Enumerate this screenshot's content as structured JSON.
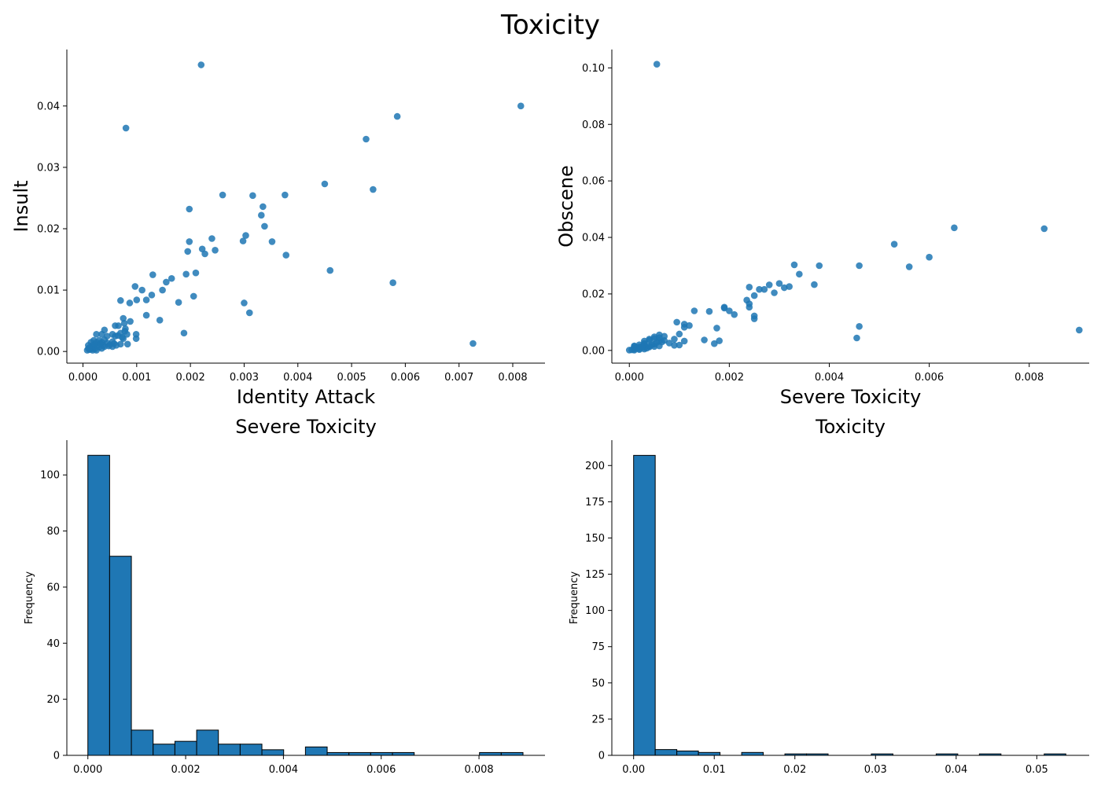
{
  "figure": {
    "title": "Toxicity"
  },
  "colors": {
    "marker": "#1f77b4",
    "edge": "#000000",
    "axis": "#000000"
  },
  "chart_data": [
    {
      "type": "scatter",
      "title": "",
      "xlabel": "Identity Attack",
      "ylabel": "Insult",
      "xlim": [
        -0.0003,
        0.0086
      ],
      "ylim": [
        -0.0019,
        0.0492
      ],
      "xticks": [
        0.0,
        0.001,
        0.002,
        0.003,
        0.004,
        0.005,
        0.006,
        0.007,
        0.008
      ],
      "yticks": [
        0.0,
        0.01,
        0.02,
        0.03,
        0.04
      ],
      "xtick_labels": [
        "0.000",
        "0.001",
        "0.002",
        "0.003",
        "0.004",
        "0.005",
        "0.006",
        "0.007",
        "0.008"
      ],
      "ytick_labels": [
        "0.00",
        "0.01",
        "0.02",
        "0.03",
        "0.04"
      ],
      "points": [
        [
          0.0022,
          0.0467
        ],
        [
          0.0008,
          0.0364
        ],
        [
          0.00815,
          0.04
        ],
        [
          0.00585,
          0.0383
        ],
        [
          0.00527,
          0.0346
        ],
        [
          0.0045,
          0.0273
        ],
        [
          0.0054,
          0.0264
        ],
        [
          0.0026,
          0.0255
        ],
        [
          0.00316,
          0.0254
        ],
        [
          0.00376,
          0.0255
        ],
        [
          0.00335,
          0.0236
        ],
        [
          0.00198,
          0.0232
        ],
        [
          0.00332,
          0.0222
        ],
        [
          0.00338,
          0.0204
        ],
        [
          0.00303,
          0.0189
        ],
        [
          0.0024,
          0.0184
        ],
        [
          0.00198,
          0.0179
        ],
        [
          0.00298,
          0.018
        ],
        [
          0.00352,
          0.0179
        ],
        [
          0.00222,
          0.0167
        ],
        [
          0.00246,
          0.0165
        ],
        [
          0.00195,
          0.0163
        ],
        [
          0.00227,
          0.0159
        ],
        [
          0.00378,
          0.0157
        ],
        [
          0.0046,
          0.0132
        ],
        [
          0.0021,
          0.0128
        ],
        [
          0.00192,
          0.0126
        ],
        [
          0.0013,
          0.0125
        ],
        [
          0.00165,
          0.0119
        ],
        [
          0.00155,
          0.0113
        ],
        [
          0.00577,
          0.0112
        ],
        [
          0.00097,
          0.0106
        ],
        [
          0.0011,
          0.01
        ],
        [
          0.00148,
          0.01
        ],
        [
          0.00128,
          0.0092
        ],
        [
          0.00206,
          0.009
        ],
        [
          0.00118,
          0.0084
        ],
        [
          0.001,
          0.0084
        ],
        [
          0.0007,
          0.0083
        ],
        [
          0.00087,
          0.0079
        ],
        [
          0.00178,
          0.008
        ],
        [
          0.003,
          0.0079
        ],
        [
          0.0031,
          0.0063
        ],
        [
          0.00118,
          0.0059
        ],
        [
          0.00143,
          0.0051
        ],
        [
          0.00075,
          0.0054
        ],
        [
          0.00088,
          0.0049
        ],
        [
          0.00077,
          0.0046
        ],
        [
          0.0006,
          0.0042
        ],
        [
          0.00066,
          0.0042
        ],
        [
          0.00079,
          0.0037
        ],
        [
          0.0004,
          0.0035
        ],
        [
          0.00078,
          0.0033
        ],
        [
          0.0007,
          0.003
        ],
        [
          0.00188,
          0.003
        ],
        [
          0.00025,
          0.0028
        ],
        [
          0.00035,
          0.0028
        ],
        [
          0.00055,
          0.0028
        ],
        [
          0.00065,
          0.0026
        ],
        [
          0.00082,
          0.0028
        ],
        [
          0.00099,
          0.0028
        ],
        [
          0.00045,
          0.0025
        ],
        [
          0.0006,
          0.0025
        ],
        [
          0.00073,
          0.0023
        ],
        [
          0.00099,
          0.0021
        ],
        [
          0.00075,
          0.0021
        ],
        [
          0.0002,
          0.0018
        ],
        [
          0.0003,
          0.0018
        ],
        [
          0.0004,
          0.0019
        ],
        [
          0.00055,
          0.0016
        ],
        [
          0.00015,
          0.0015
        ],
        [
          0.00025,
          0.0015
        ],
        [
          0.00035,
          0.0015
        ],
        [
          0.00045,
          0.0014
        ],
        [
          0.00058,
          0.0013
        ],
        [
          0.00083,
          0.0012
        ],
        [
          0.0007,
          0.0012
        ],
        [
          0.00726,
          0.0013
        ],
        [
          0.0001,
          0.001
        ],
        [
          0.00018,
          0.001
        ],
        [
          0.00028,
          0.001
        ],
        [
          0.00038,
          0.001
        ],
        [
          0.00048,
          0.0009
        ],
        [
          0.00055,
          0.0008
        ],
        [
          0.0002,
          0.0007
        ],
        [
          0.0003,
          0.0007
        ],
        [
          0.0001,
          0.0005
        ],
        [
          0.00015,
          0.0004
        ],
        [
          0.00022,
          0.0004
        ],
        [
          0.00012,
          0.0003
        ],
        [
          8e-05,
          0.0002
        ],
        [
          0.00018,
          0.0002
        ],
        [
          0.00025,
          0.0002
        ],
        [
          0.00035,
          0.0005
        ],
        [
          0.00012,
          0.0006
        ],
        [
          0.0005,
          0.0011
        ],
        [
          0.0004,
          0.0008
        ],
        [
          0.00062,
          0.001
        ],
        [
          0.00022,
          0.0012
        ],
        [
          0.00032,
          0.0013
        ]
      ]
    },
    {
      "type": "scatter",
      "title": "",
      "xlabel": "Severe Toxicity",
      "ylabel": "Obscene",
      "xlim": [
        -0.00035,
        0.0092
      ],
      "ylim": [
        -0.0045,
        0.1065
      ],
      "xticks": [
        0.0,
        0.002,
        0.004,
        0.006,
        0.008
      ],
      "yticks": [
        0.0,
        0.02,
        0.04,
        0.06,
        0.08,
        0.1
      ],
      "xtick_labels": [
        "0.000",
        "0.002",
        "0.004",
        "0.006",
        "0.008"
      ],
      "ytick_labels": [
        "0.00",
        "0.02",
        "0.04",
        "0.06",
        "0.08",
        "0.10"
      ],
      "points": [
        [
          0.00055,
          0.1013
        ],
        [
          0.0065,
          0.0434
        ],
        [
          0.0083,
          0.0431
        ],
        [
          0.0053,
          0.0376
        ],
        [
          0.006,
          0.033
        ],
        [
          0.0033,
          0.0303
        ],
        [
          0.0038,
          0.03
        ],
        [
          0.0046,
          0.03
        ],
        [
          0.0056,
          0.0296
        ],
        [
          0.0034,
          0.027
        ],
        [
          0.003,
          0.0237
        ],
        [
          0.0028,
          0.0232
        ],
        [
          0.0037,
          0.0233
        ],
        [
          0.0032,
          0.0226
        ],
        [
          0.0031,
          0.0222
        ],
        [
          0.0024,
          0.0224
        ],
        [
          0.0026,
          0.0216
        ],
        [
          0.0027,
          0.0216
        ],
        [
          0.0029,
          0.0204
        ],
        [
          0.0025,
          0.0194
        ],
        [
          0.0024,
          0.0165
        ],
        [
          0.00235,
          0.0178
        ],
        [
          0.0019,
          0.0153
        ],
        [
          0.0019,
          0.015
        ],
        [
          0.0024,
          0.0153
        ],
        [
          0.002,
          0.014
        ],
        [
          0.0021,
          0.0127
        ],
        [
          0.0025,
          0.0122
        ],
        [
          0.0025,
          0.0112
        ],
        [
          0.0016,
          0.0138
        ],
        [
          0.0013,
          0.014
        ],
        [
          0.0011,
          0.0093
        ],
        [
          0.0012,
          0.0088
        ],
        [
          0.0011,
          0.0082
        ],
        [
          0.00095,
          0.01
        ],
        [
          0.0046,
          0.0085
        ],
        [
          0.00175,
          0.0079
        ],
        [
          0.009,
          0.0072
        ],
        [
          0.001,
          0.0058
        ],
        [
          0.0006,
          0.0055
        ],
        [
          0.0007,
          0.005
        ],
        [
          0.0005,
          0.0048
        ],
        [
          0.0006,
          0.0045
        ],
        [
          0.0005,
          0.0042
        ],
        [
          0.0004,
          0.004
        ],
        [
          0.0004,
          0.0036
        ],
        [
          0.0003,
          0.0033
        ],
        [
          0.0006,
          0.0034
        ],
        [
          0.0007,
          0.0035
        ],
        [
          0.0009,
          0.004
        ],
        [
          0.0011,
          0.0033
        ],
        [
          0.0015,
          0.0037
        ],
        [
          0.0018,
          0.0034
        ],
        [
          0.00455,
          0.0044
        ],
        [
          0.0008,
          0.0026
        ],
        [
          0.0009,
          0.0018
        ],
        [
          0.001,
          0.0019
        ],
        [
          0.0017,
          0.0024
        ],
        [
          0.0003,
          0.0025
        ],
        [
          0.0005,
          0.0022
        ],
        [
          0.0002,
          0.002
        ],
        [
          0.0003,
          0.0018
        ],
        [
          0.0004,
          0.0015
        ],
        [
          0.0001,
          0.0014
        ],
        [
          0.0002,
          0.0012
        ],
        [
          0.0003,
          0.001
        ],
        [
          0.0004,
          0.0012
        ],
        [
          0.0005,
          0.0014
        ],
        [
          0.0006,
          0.0016
        ],
        [
          0.0001,
          0.0008
        ],
        [
          0.0002,
          0.0006
        ],
        [
          0.0001,
          0.0004
        ],
        [
          5e-05,
          0.0002
        ],
        [
          0.0,
          0.0001
        ],
        [
          0.0001,
          0.0001
        ],
        [
          0.0002,
          0.0003
        ],
        [
          0.0003,
          0.0005
        ],
        [
          0.00035,
          0.0008
        ],
        [
          0.00015,
          0.001
        ],
        [
          0.00025,
          0.0014
        ],
        [
          0.00045,
          0.002
        ],
        [
          0.00055,
          0.0028
        ],
        [
          0.00065,
          0.003
        ],
        [
          0.0001,
          0.0016
        ],
        [
          0.0003,
          0.0022
        ]
      ]
    },
    {
      "type": "bar",
      "histogram": true,
      "title": "Severe Toxicity",
      "xlabel": "",
      "ylabel": "Frequency",
      "xlim": [
        -0.00043,
        0.00935
      ],
      "ylim": [
        0,
        112.4
      ],
      "xticks": [
        0.0,
        0.002,
        0.004,
        0.006,
        0.008
      ],
      "yticks": [
        0,
        20,
        40,
        60,
        80,
        100
      ],
      "xtick_labels": [
        "0.000",
        "0.002",
        "0.004",
        "0.006",
        "0.008"
      ],
      "ytick_labels": [
        "0",
        "20",
        "40",
        "60",
        "80",
        "100"
      ],
      "bin_start": 0.0,
      "bin_width": 0.000445,
      "values": [
        107,
        71,
        9,
        4,
        5,
        9,
        4,
        4,
        2,
        0,
        3,
        1,
        1,
        1,
        1,
        0,
        0,
        0,
        1,
        1
      ]
    },
    {
      "type": "bar",
      "histogram": true,
      "title": "Toxicity",
      "xlabel": "",
      "ylabel": "Frequency",
      "xlim": [
        -0.0027,
        0.0565
      ],
      "ylim": [
        0,
        217.5
      ],
      "xticks": [
        0.0,
        0.01,
        0.02,
        0.03,
        0.04,
        0.05
      ],
      "yticks": [
        0,
        25,
        50,
        75,
        100,
        125,
        150,
        175,
        200
      ],
      "xtick_labels": [
        "0.00",
        "0.01",
        "0.02",
        "0.03",
        "0.04",
        "0.05"
      ],
      "ytick_labels": [
        "0",
        "25",
        "50",
        "75",
        "100",
        "125",
        "150",
        "175",
        "200"
      ],
      "bin_start": 0.0,
      "bin_width": 0.00268,
      "values": [
        207,
        4,
        3,
        2,
        0,
        2,
        0,
        1,
        1,
        0,
        0,
        1,
        0,
        0,
        1,
        0,
        1,
        0,
        0,
        1
      ]
    }
  ]
}
